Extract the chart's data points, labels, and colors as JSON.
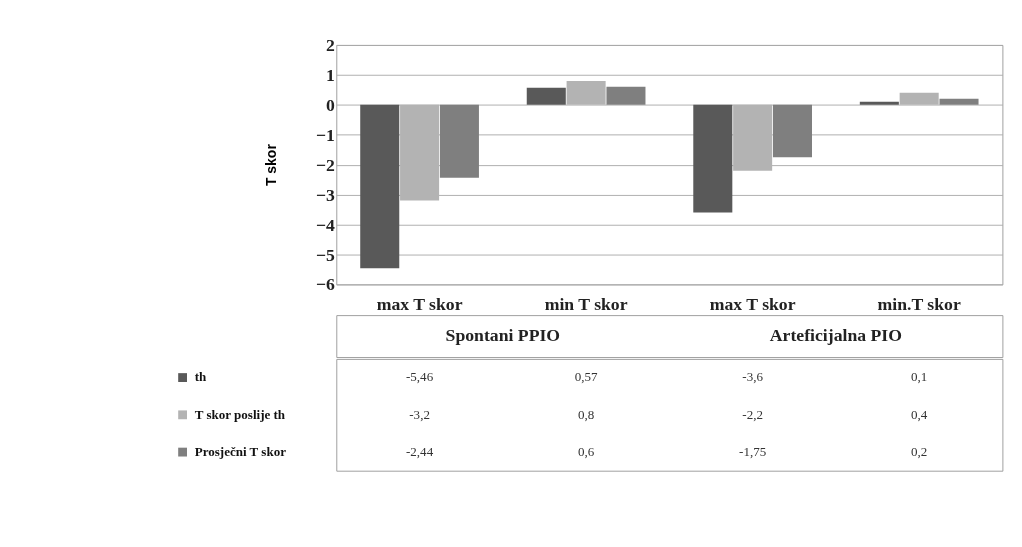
{
  "chart_data": {
    "type": "bar",
    "ylabel": "T skor",
    "categories": [
      "max T skor",
      "min T skor",
      "max T skor",
      "min.T skor"
    ],
    "annotations": [
      "Spontani PPIO",
      "Arteficijalna PIO"
    ],
    "series": [
      {
        "name": "th",
        "color": "#595959",
        "values": [
          -5.46,
          0.57,
          -3.6,
          0.1
        ],
        "value_labels": [
          "-5,46",
          "0,57",
          "-3,6",
          "0,1"
        ]
      },
      {
        "name": "T skor poslije th",
        "color": "#b3b3b3",
        "values": [
          -3.2,
          0.8,
          -2.2,
          0.4
        ],
        "value_labels": [
          "-3,2",
          "0,8",
          "-2,2",
          "0,4"
        ]
      },
      {
        "name": "Prosječni T skor",
        "color": "#7f7f7f",
        "values": [
          -2.44,
          0.6,
          -1.75,
          0.2
        ],
        "value_labels": [
          "-2,44",
          "0,6",
          "-1,75",
          "0,2"
        ]
      }
    ],
    "ylim": [
      -6,
      2
    ],
    "yticks": [
      -6,
      -5,
      -4,
      -3,
      -2,
      -1,
      0,
      1,
      2
    ],
    "grid": "y",
    "legend": "bottom"
  }
}
